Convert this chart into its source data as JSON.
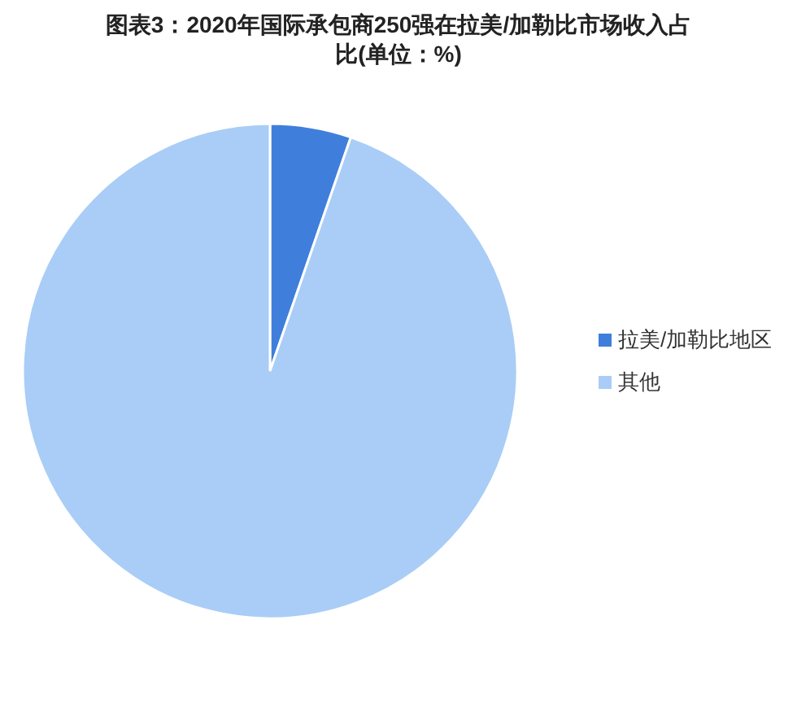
{
  "chart_data": {
    "type": "pie",
    "title": "图表3：2020年国际承包商250强在拉美/加勒比市场收入占比(单位：%)",
    "categories": [
      "拉美/加勒比地区",
      "其他"
    ],
    "values": [
      5.3,
      94.7
    ],
    "colors": [
      "#3f7fdb",
      "#a9cdf6"
    ],
    "legend": "right"
  }
}
